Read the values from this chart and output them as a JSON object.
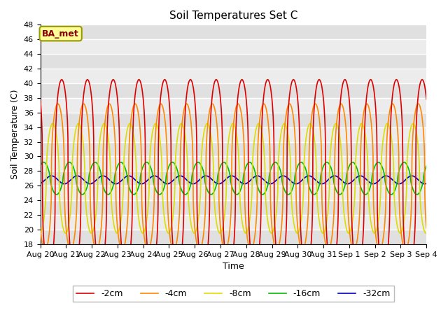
{
  "title": "Soil Temperatures Set C",
  "xlabel": "Time",
  "ylabel": "Soil Temperature (C)",
  "ylim": [
    18,
    48
  ],
  "yticks": [
    18,
    20,
    22,
    24,
    26,
    28,
    30,
    32,
    34,
    36,
    38,
    40,
    42,
    44,
    46,
    48
  ],
  "legend_labels": [
    "-2cm",
    "-4cm",
    "-8cm",
    "-16cm",
    "-32cm"
  ],
  "legend_colors": [
    "#dd0000",
    "#ff8800",
    "#dddd00",
    "#00bb00",
    "#0000bb"
  ],
  "annotation_text": "BA_met",
  "annotation_bg": "#ffff99",
  "annotation_border": "#999900",
  "plot_bg": "#e8e8e8",
  "grid_color": "#ffffff",
  "start_day": 20,
  "num_days": 15,
  "n_points": 1440,
  "depths": {
    "-2cm": {
      "mean": 27.5,
      "amp": 13.0,
      "phase": 0.0,
      "power": 3.0
    },
    "-4cm": {
      "mean": 27.2,
      "amp": 10.0,
      "phase": 0.15,
      "power": 2.5
    },
    "-8cm": {
      "mean": 27.0,
      "amp": 7.5,
      "phase": 0.35,
      "power": 2.0
    },
    "-16cm": {
      "mean": 27.0,
      "amp": 2.2,
      "phase": 0.7,
      "power": 1.5
    },
    "-32cm": {
      "mean": 26.8,
      "amp": 0.55,
      "phase": 1.4,
      "power": 1.0
    }
  }
}
